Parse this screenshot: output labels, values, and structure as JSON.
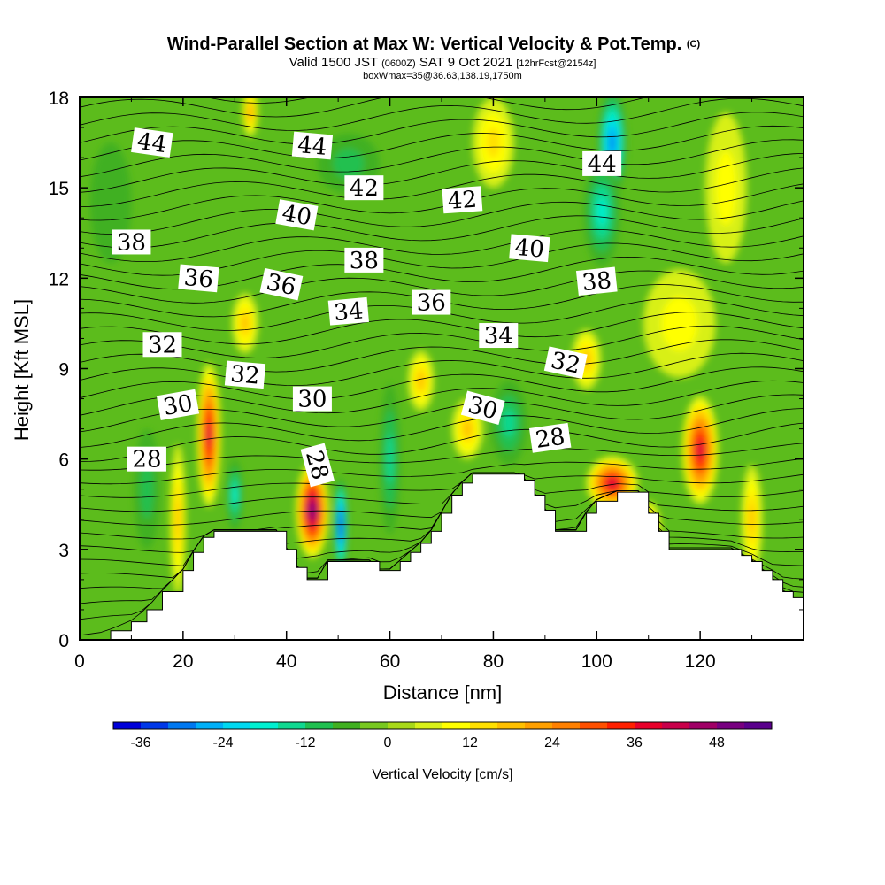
{
  "chart_data": {
    "type": "contour",
    "title": "Wind-Parallel Section at Max W: Vertical Velocity & Pot.Temp.",
    "title_mark": "(C)",
    "subtitle": {
      "prefix": "Valid 1500 JST",
      "utc": "(0600Z)",
      "date": "SAT 9 Oct 2021",
      "forecast": "[12hrFcst@2154z]"
    },
    "box_info": "boxWmax=35@36.63,138.19,1750m",
    "xlabel": "Distance [nm]",
    "ylabel": "Height [Kft MSL]",
    "xlim": [
      0,
      140
    ],
    "ylim": [
      0,
      18
    ],
    "x_ticks": [
      0,
      20,
      40,
      60,
      80,
      100,
      120
    ],
    "y_ticks": [
      0,
      3,
      6,
      9,
      12,
      15,
      18
    ],
    "terrain_kft": {
      "x": [
        0,
        4,
        6,
        10,
        13,
        16,
        20,
        22,
        24,
        26,
        28,
        30,
        38,
        40,
        42,
        44,
        46,
        48,
        56,
        58,
        60,
        62,
        64,
        66,
        68,
        70,
        72,
        74,
        76,
        78,
        80,
        84,
        86,
        88,
        90,
        92,
        96,
        98,
        100,
        104,
        108,
        110,
        112,
        114,
        116,
        118,
        126,
        128,
        130,
        132,
        134,
        136,
        138,
        140
      ],
      "y": [
        0,
        0,
        0.3,
        0.6,
        1.0,
        1.6,
        2.3,
        2.9,
        3.4,
        3.6,
        3.6,
        3.6,
        3.6,
        3.0,
        2.4,
        2.0,
        2.0,
        2.6,
        2.6,
        2.3,
        2.3,
        2.6,
        2.9,
        3.2,
        3.6,
        4.2,
        4.8,
        5.2,
        5.5,
        5.5,
        5.5,
        5.5,
        5.3,
        4.8,
        4.3,
        3.6,
        3.6,
        4.2,
        4.6,
        4.9,
        4.9,
        4.2,
        3.6,
        3.0,
        3.0,
        3.0,
        3.0,
        2.8,
        2.6,
        2.3,
        2.0,
        1.6,
        1.4,
        1.4
      ]
    },
    "w_cells": [
      {
        "x": 25,
        "y": 6.8,
        "rx": 2.3,
        "ry": 2.4,
        "w": 40
      },
      {
        "x": 45,
        "y": 4.3,
        "rx": 3.2,
        "ry": 1.6,
        "w": 52
      },
      {
        "x": 50.5,
        "y": 3.8,
        "rx": 1.3,
        "ry": 1.6,
        "w": -34
      },
      {
        "x": 103,
        "y": 5.2,
        "rx": 5.0,
        "ry": 0.9,
        "w": 38
      },
      {
        "x": 120,
        "y": 6.3,
        "rx": 3.5,
        "ry": 1.8,
        "w": 38
      },
      {
        "x": 103,
        "y": 16.5,
        "rx": 2.8,
        "ry": 1.8,
        "w": -26
      },
      {
        "x": 101,
        "y": 14.2,
        "rx": 3.5,
        "ry": 1.8,
        "w": -16
      },
      {
        "x": 98,
        "y": 9.3,
        "rx": 2.8,
        "ry": 1.0,
        "w": 16
      },
      {
        "x": 75,
        "y": 7.0,
        "rx": 3.0,
        "ry": 1.0,
        "w": 14
      },
      {
        "x": 60,
        "y": 6.0,
        "rx": 2.0,
        "ry": 2.5,
        "w": -10
      },
      {
        "x": 83,
        "y": 7.2,
        "rx": 3.5,
        "ry": 1.4,
        "w": -12
      },
      {
        "x": 30,
        "y": 4.8,
        "rx": 1.6,
        "ry": 1.2,
        "w": -14
      },
      {
        "x": 13,
        "y": 5.0,
        "rx": 2.5,
        "ry": 2.0,
        "w": -8
      },
      {
        "x": 19,
        "y": 4.0,
        "rx": 1.5,
        "ry": 2.5,
        "w": 14
      },
      {
        "x": 32,
        "y": 10.5,
        "rx": 2.5,
        "ry": 1.0,
        "w": 14
      },
      {
        "x": 66,
        "y": 8.6,
        "rx": 2.5,
        "ry": 1.0,
        "w": 14
      },
      {
        "x": 80,
        "y": 16.5,
        "rx": 4.0,
        "ry": 1.5,
        "w": 10
      },
      {
        "x": 52,
        "y": 15.8,
        "rx": 6.0,
        "ry": 1.0,
        "w": -6
      },
      {
        "x": 33,
        "y": 17.5,
        "rx": 1.5,
        "ry": 0.8,
        "w": 18
      },
      {
        "x": 116,
        "y": 10.5,
        "rx": 7.0,
        "ry": 1.8,
        "w": 8
      },
      {
        "x": 130,
        "y": 4.0,
        "rx": 2.0,
        "ry": 1.8,
        "w": 16
      },
      {
        "x": 110,
        "y": 3.6,
        "rx": 2.5,
        "ry": 1.0,
        "w": 20
      },
      {
        "x": 6,
        "y": 14.5,
        "rx": 4.0,
        "ry": 2.0,
        "w": -4
      },
      {
        "x": 125,
        "y": 15.0,
        "rx": 4.0,
        "ry": 2.5,
        "w": 6
      }
    ],
    "theta_labels": [
      {
        "text": "44",
        "x": 14,
        "y": 16.5,
        "angle": 8
      },
      {
        "text": "44",
        "x": 45,
        "y": 16.4,
        "angle": 5
      },
      {
        "text": "42",
        "x": 55,
        "y": 15.0,
        "angle": 0
      },
      {
        "text": "42",
        "x": 74,
        "y": 14.6,
        "angle": -4
      },
      {
        "text": "44",
        "x": 101,
        "y": 15.8,
        "angle": 0
      },
      {
        "text": "40",
        "x": 42,
        "y": 14.1,
        "angle": 10
      },
      {
        "text": "38",
        "x": 10,
        "y": 13.2,
        "angle": 0
      },
      {
        "text": "40",
        "x": 87,
        "y": 13.0,
        "angle": 5
      },
      {
        "text": "38",
        "x": 55,
        "y": 12.6,
        "angle": 0
      },
      {
        "text": "36",
        "x": 23,
        "y": 12.0,
        "angle": 5
      },
      {
        "text": "36",
        "x": 39,
        "y": 11.8,
        "angle": 12
      },
      {
        "text": "38",
        "x": 100,
        "y": 11.9,
        "angle": -6
      },
      {
        "text": "36",
        "x": 68,
        "y": 11.2,
        "angle": 0
      },
      {
        "text": "34",
        "x": 52,
        "y": 10.9,
        "angle": -5
      },
      {
        "text": "34",
        "x": 81,
        "y": 10.1,
        "angle": 0
      },
      {
        "text": "32",
        "x": 16,
        "y": 9.8,
        "angle": 0
      },
      {
        "text": "32",
        "x": 32,
        "y": 8.8,
        "angle": 5
      },
      {
        "text": "32",
        "x": 94,
        "y": 9.2,
        "angle": 12
      },
      {
        "text": "30",
        "x": 19,
        "y": 7.8,
        "angle": -10
      },
      {
        "text": "30",
        "x": 45,
        "y": 8.0,
        "angle": 0
      },
      {
        "text": "30",
        "x": 78,
        "y": 7.7,
        "angle": 15
      },
      {
        "text": "28",
        "x": 13,
        "y": 6.0,
        "angle": 0
      },
      {
        "text": "28",
        "x": 46,
        "y": 5.8,
        "angle": 75
      },
      {
        "text": "28",
        "x": 91,
        "y": 6.7,
        "angle": -8
      }
    ],
    "colorbar": {
      "label": "Vertical Velocity [cm/s]",
      "min": -40,
      "max": 56,
      "step": 4,
      "ticks": [
        -36,
        -24,
        -12,
        0,
        12,
        24,
        36,
        48
      ],
      "colors": [
        "#0000d8",
        "#0038e8",
        "#0078f0",
        "#00b0f8",
        "#00d8f0",
        "#00f0d0",
        "#10d890",
        "#20c050",
        "#40b020",
        "#78c820",
        "#a8d818",
        "#d8f018",
        "#ffff00",
        "#ffe000",
        "#ffc000",
        "#ffa000",
        "#ff8000",
        "#ff5000",
        "#ff2000",
        "#e8002a",
        "#c8004a",
        "#a00066",
        "#780080",
        "#5a008c"
      ]
    }
  }
}
